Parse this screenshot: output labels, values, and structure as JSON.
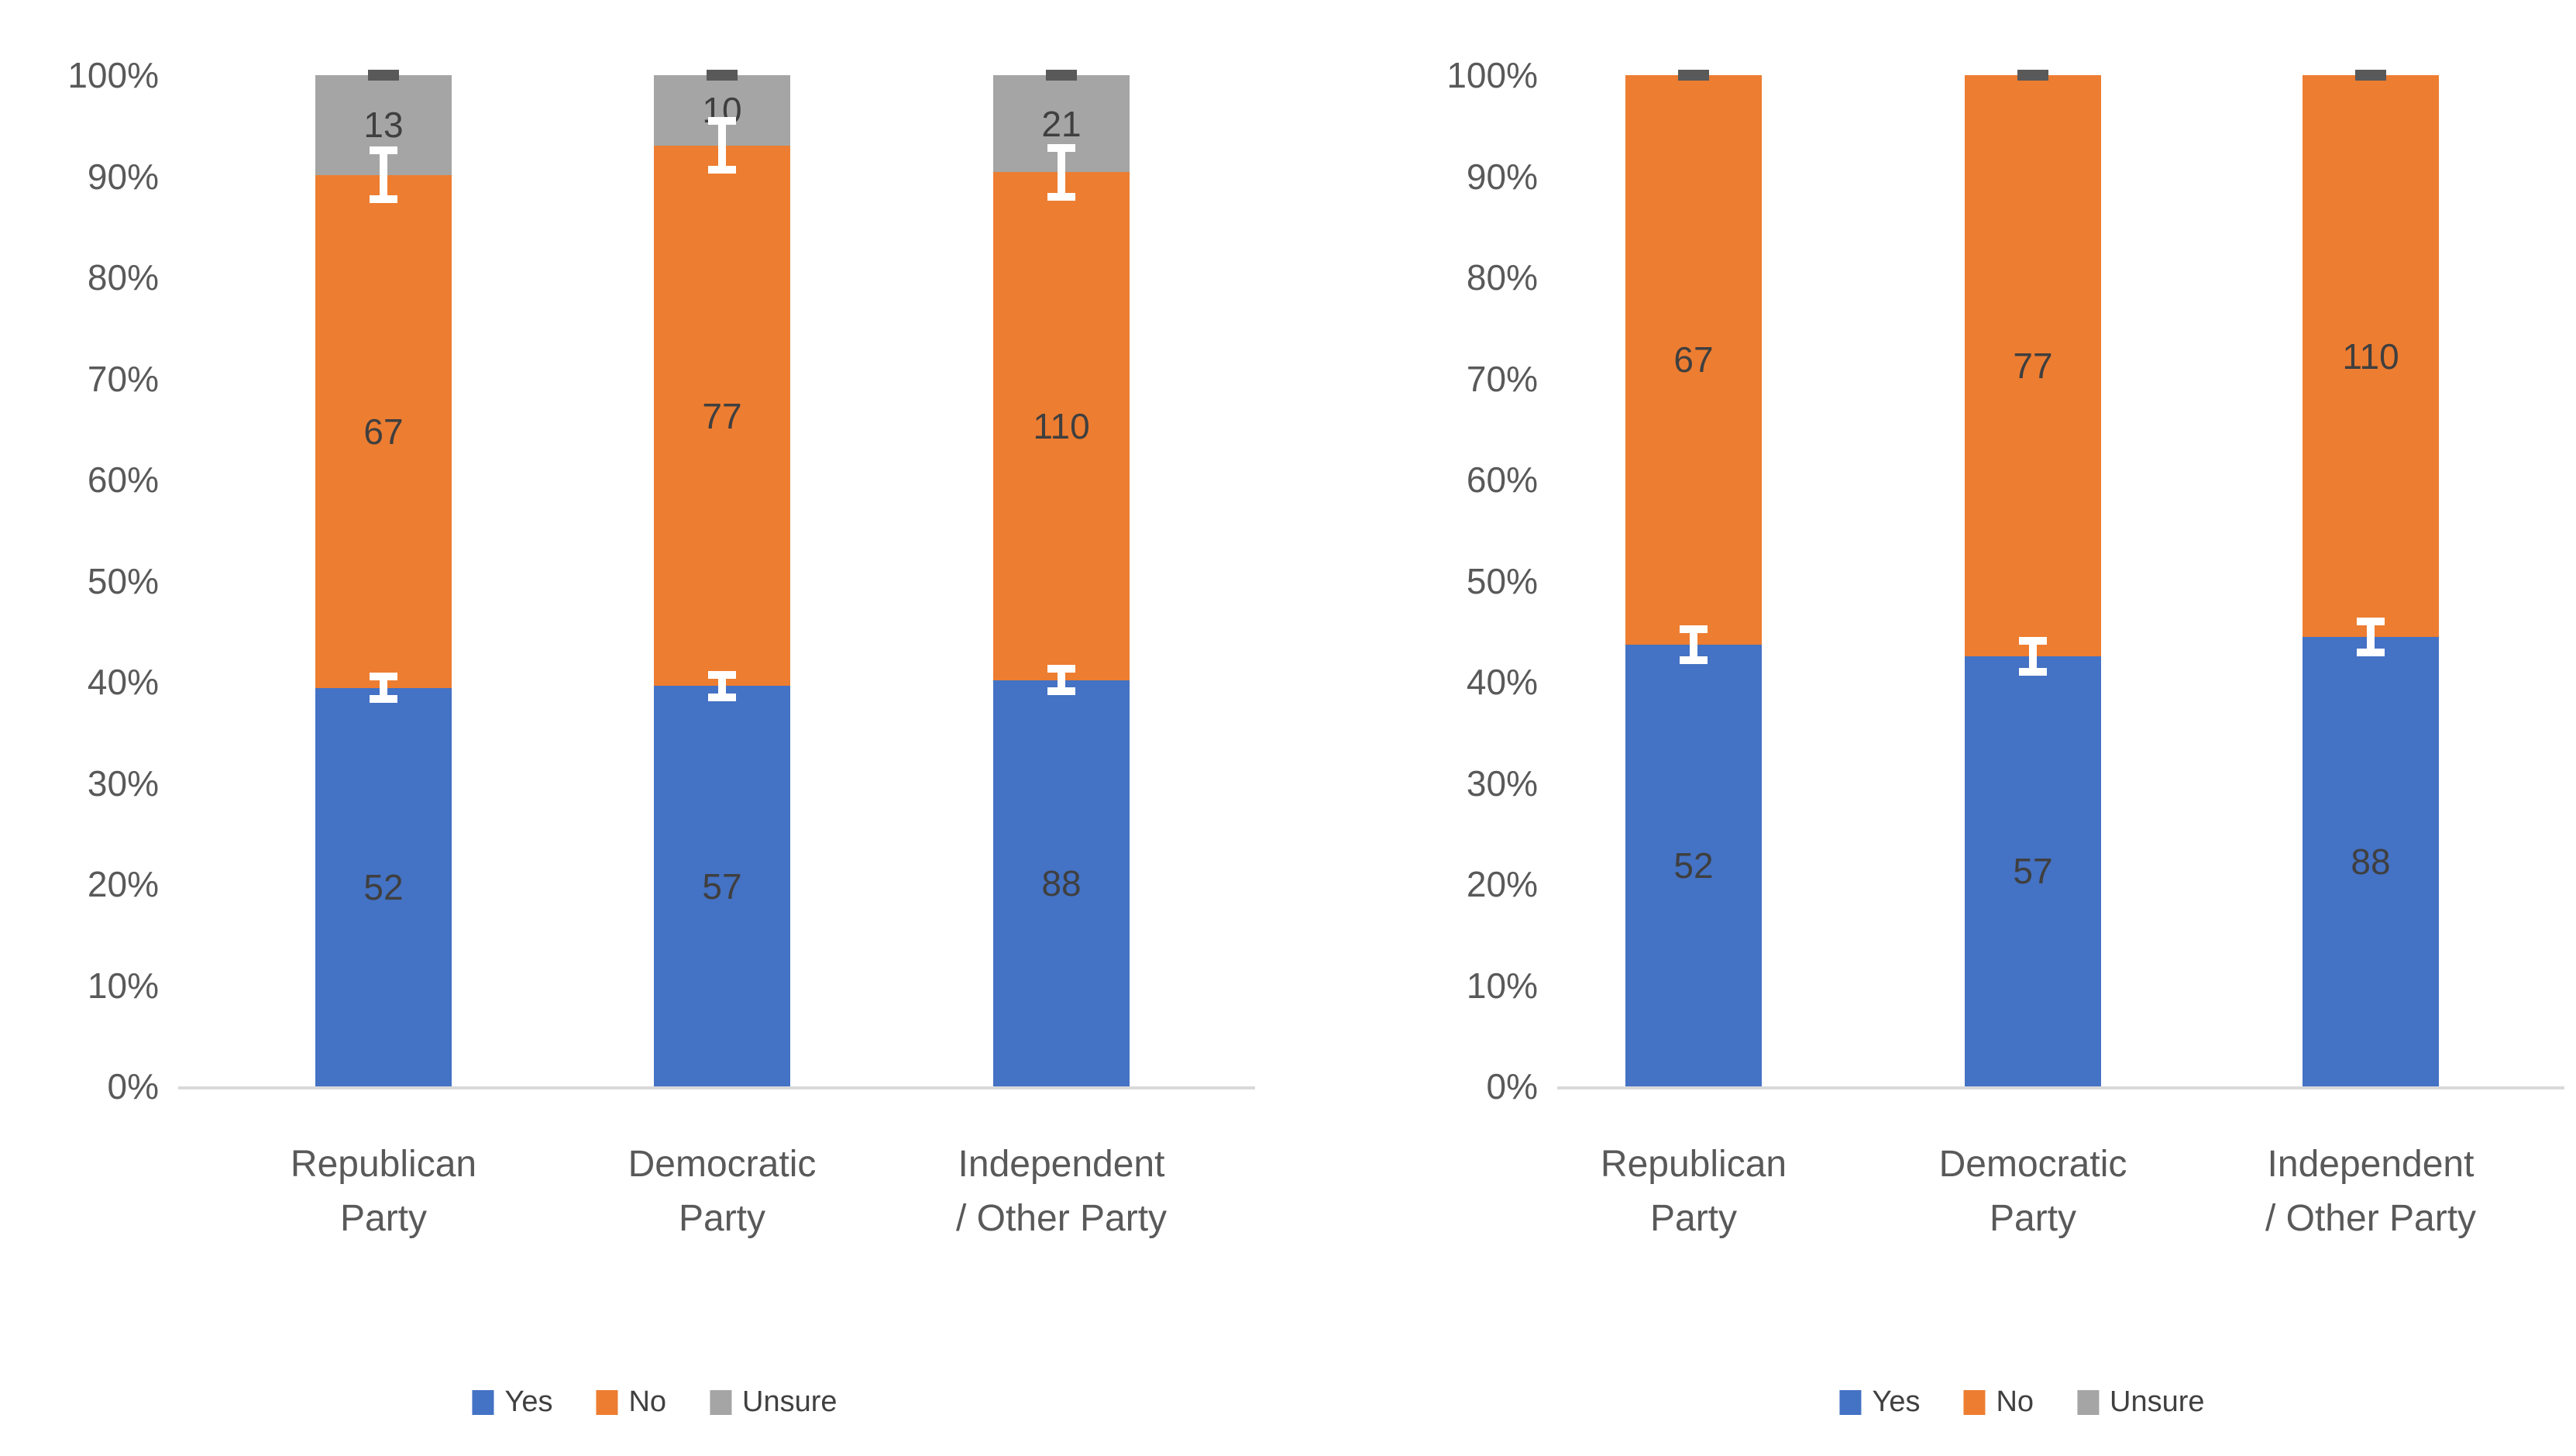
{
  "page": {
    "background": "#FFFFFF",
    "description": "Two side-by-side 100% stacked column charts comparing party affiliation responses"
  },
  "colors": {
    "yes": "#4472C4",
    "no": "#ED7D31",
    "unsure": "#A5A5A5",
    "axis_line": "#D9D9D9",
    "tick_text": "#595959",
    "category_text": "#595959",
    "data_label_text": "#3F3F3F",
    "legend_text": "#404040",
    "error_bar_white": "#FFFFFF",
    "error_bar_dark": "#595959"
  },
  "chart_data": [
    {
      "type": "bar",
      "subtype": "stacked-100-percent-column",
      "title": "",
      "xlabel": "",
      "ylabel": "",
      "categories": [
        "Republican Party",
        "Democratic Party",
        "Independent / Other Party"
      ],
      "category_label_lines": [
        [
          "Republican",
          "Party"
        ],
        [
          "Democratic",
          "Party"
        ],
        [
          "Independent",
          "/ Other Party"
        ]
      ],
      "series": [
        {
          "name": "Yes",
          "color": "#4472C4",
          "values": [
            52,
            57,
            88
          ]
        },
        {
          "name": "No",
          "color": "#ED7D31",
          "values": [
            67,
            77,
            110
          ]
        },
        {
          "name": "Unsure",
          "color": "#A5A5A5",
          "values": [
            13,
            10,
            21
          ]
        }
      ],
      "stacked_percent_by_category": {
        "Republican Party": {
          "Yes": 39.4,
          "No": 50.8,
          "Unsure": 9.8
        },
        "Democratic Party": {
          "Yes": 39.6,
          "No": 53.5,
          "Unsure": 6.9
        },
        "Independent / Other Party": {
          "Yes": 40.2,
          "No": 50.2,
          "Unsure": 9.6
        }
      },
      "y_ticks": [
        "0%",
        "10%",
        "20%",
        "30%",
        "40%",
        "50%",
        "60%",
        "70%",
        "80%",
        "90%",
        "100%"
      ],
      "ylim": [
        0,
        100
      ],
      "gridlines": false,
      "data_labels": true,
      "error_bars": {
        "internal_boundaries": [
          {
            "between": "Yes/No",
            "style": "white-whisker",
            "half_pct": 1.5
          },
          {
            "between": "No/Unsure",
            "style": "white-whisker",
            "half_pct": 2.8
          }
        ],
        "top_cap": {
          "style": "dark-cap",
          "color": "#595959"
        }
      },
      "legend": {
        "position": "bottom",
        "items": [
          {
            "label": "Yes",
            "color": "#4472C4"
          },
          {
            "label": "No",
            "color": "#ED7D31"
          },
          {
            "label": "Unsure",
            "color": "#A5A5A5"
          }
        ]
      }
    },
    {
      "type": "bar",
      "subtype": "stacked-100-percent-column",
      "title": "",
      "xlabel": "",
      "ylabel": "",
      "categories": [
        "Republican Party",
        "Democratic Party",
        "Independent / Other Party"
      ],
      "category_label_lines": [
        [
          "Republican",
          "Party"
        ],
        [
          "Democratic",
          "Party"
        ],
        [
          "Independent",
          "/ Other Party"
        ]
      ],
      "series": [
        {
          "name": "Yes",
          "color": "#4472C4",
          "values": [
            52,
            57,
            88
          ]
        },
        {
          "name": "No",
          "color": "#ED7D31",
          "values": [
            67,
            77,
            110
          ]
        }
      ],
      "stacked_percent_by_category": {
        "Republican Party": {
          "Yes": 43.7,
          "No": 56.3
        },
        "Democratic Party": {
          "Yes": 42.5,
          "No": 57.5
        },
        "Independent / Other Party": {
          "Yes": 44.4,
          "No": 55.6
        }
      },
      "y_ticks": [
        "0%",
        "10%",
        "20%",
        "30%",
        "40%",
        "50%",
        "60%",
        "70%",
        "80%",
        "90%",
        "100%"
      ],
      "ylim": [
        0,
        100
      ],
      "gridlines": false,
      "data_labels": true,
      "error_bars": {
        "internal_boundaries": [
          {
            "between": "Yes/No",
            "style": "white-whisker",
            "half_pct": 1.9
          }
        ],
        "top_cap": {
          "style": "dark-cap",
          "color": "#595959"
        }
      },
      "legend": {
        "position": "bottom",
        "items": [
          {
            "label": "Yes",
            "color": "#4472C4"
          },
          {
            "label": "No",
            "color": "#ED7D31"
          },
          {
            "label": "Unsure",
            "color": "#A5A5A5"
          }
        ]
      }
    }
  ]
}
